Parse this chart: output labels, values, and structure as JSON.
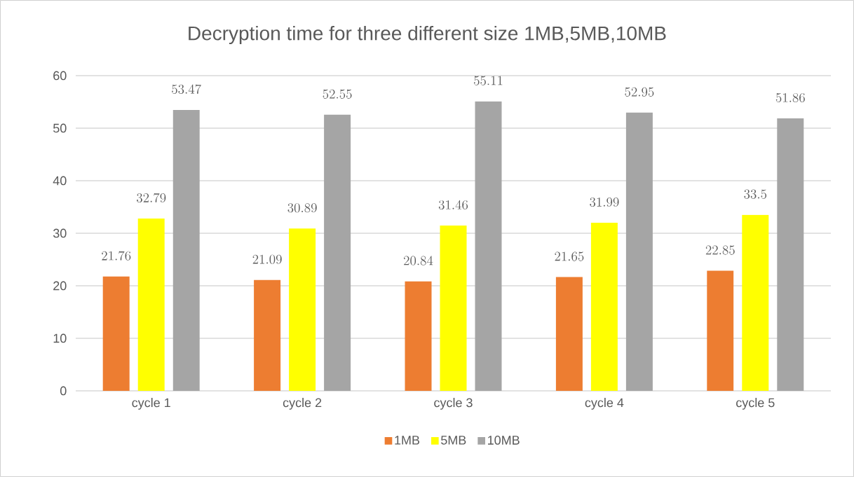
{
  "chart_data": {
    "type": "bar",
    "title": "Decryption time for three different size 1MB,5MB,10MB",
    "categories": [
      "cycle 1",
      "cycle 2",
      "cycle 3",
      "cycle 4",
      "cycle 5"
    ],
    "series": [
      {
        "name": "1MB",
        "color": "#ed7d31",
        "values": [
          21.76,
          21.09,
          20.84,
          21.65,
          22.85
        ]
      },
      {
        "name": "5MB",
        "color": "#ffff00",
        "values": [
          32.79,
          30.89,
          31.46,
          31.99,
          33.5
        ]
      },
      {
        "name": "10MB",
        "color": "#a5a5a5",
        "values": [
          53.47,
          52.55,
          55.11,
          52.95,
          51.86
        ]
      }
    ],
    "ylim": [
      0,
      60
    ],
    "yticks": [
      0,
      10,
      20,
      30,
      40,
      50,
      60
    ],
    "grid": "y",
    "legend": "bottom",
    "data_labels": true
  }
}
